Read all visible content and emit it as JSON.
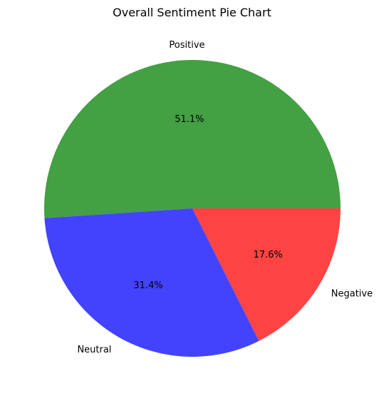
{
  "chart_data": {
    "type": "pie",
    "title": "Overall Sentiment Pie Chart",
    "start_angle_deg": 0,
    "direction": "counterclockwise",
    "slices": [
      {
        "label": "Positive",
        "value": 51.1,
        "pct_label": "51.1%",
        "color": "#43a043"
      },
      {
        "label": "Neutral",
        "value": 31.4,
        "pct_label": "31.4%",
        "color": "#4343fe"
      },
      {
        "label": "Negative",
        "value": 17.6,
        "pct_label": "17.6%",
        "color": "#fe4343"
      }
    ]
  }
}
